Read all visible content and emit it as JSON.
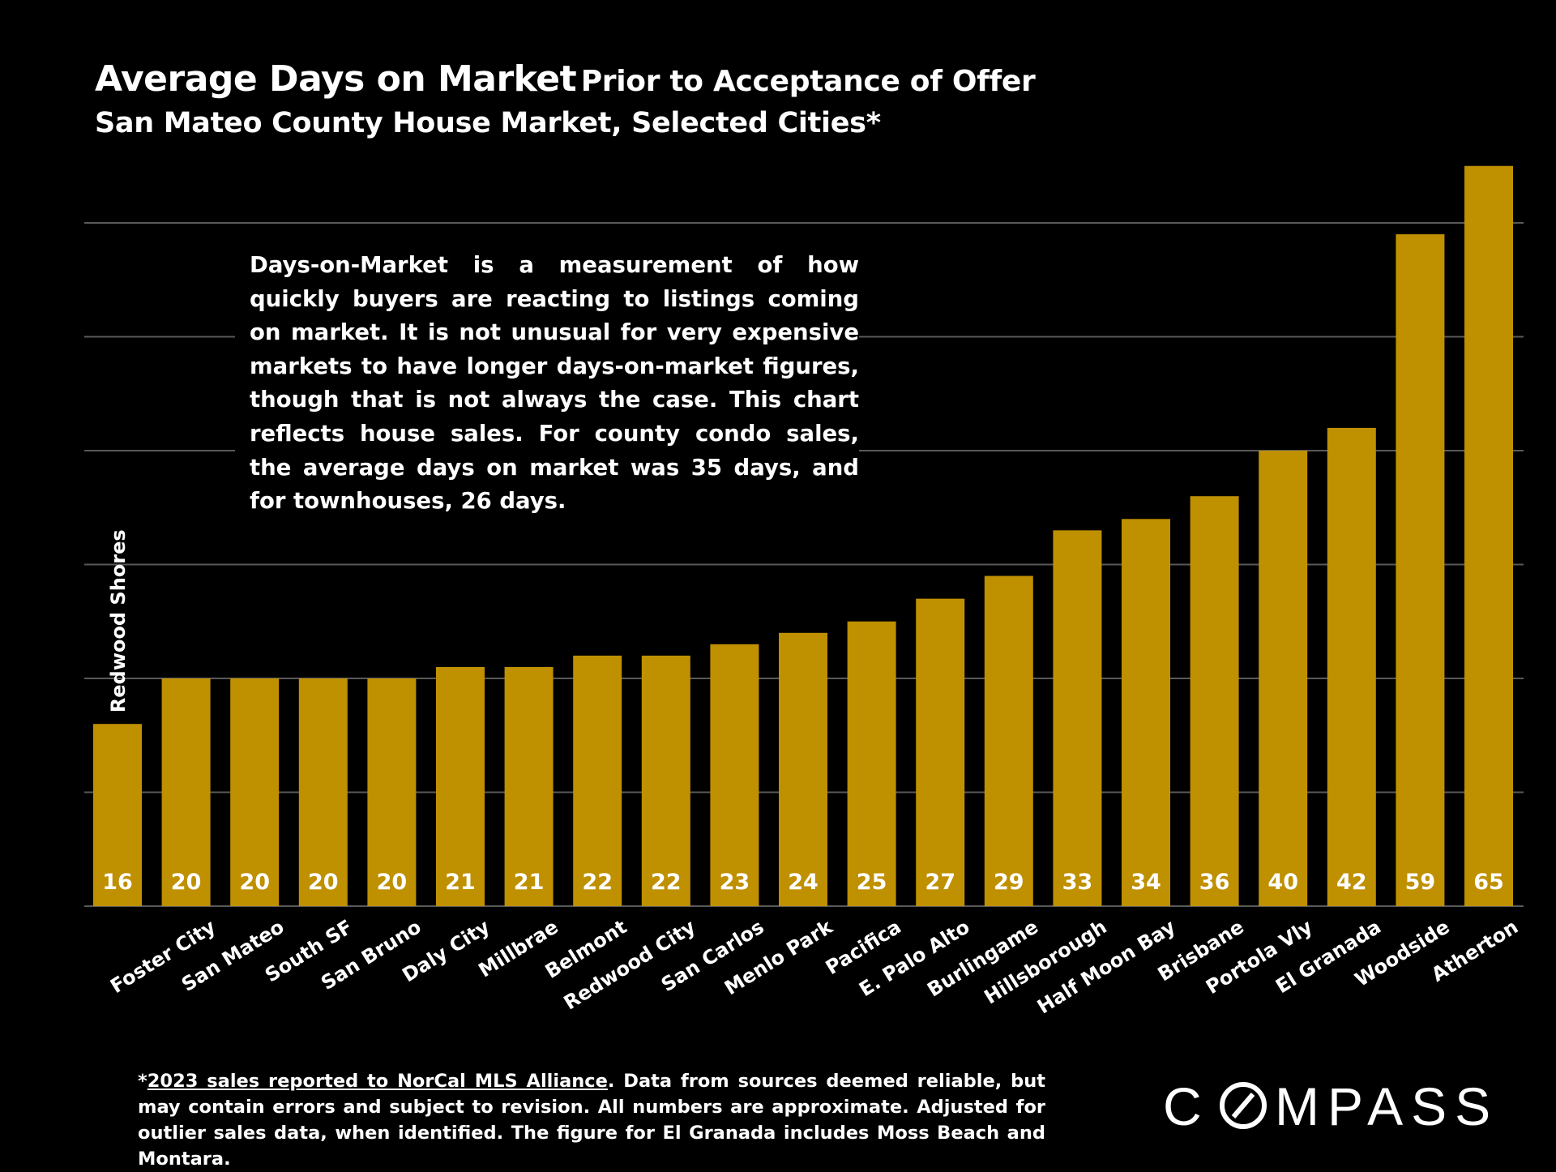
{
  "header": {
    "title_main": "Average Days on Market",
    "title_rest": "Prior to Acceptance of Offer",
    "subtitle": "San Mateo County House Market, Selected Cities*"
  },
  "note": "Days-on-Market is a measurement of how quickly buyers are reacting to listings coming on market. It is not unusual for very expensive markets to have longer days-on-market figures, though that is not always the case. This chart reflects house sales. For county condo sales, the average days on market was 35 days, and for townhouses, 26 days.",
  "footnote": {
    "asterisk": "*",
    "source_link": "2023 sales reported to NorCal MLS Alliance",
    "text": ". Data from sources deemed reliable, but may contain errors and subject to revision. All numbers are approximate. Adjusted for outlier sales data, when identified.  The figure for El Granada includes Moss Beach and Montara."
  },
  "logo": {
    "text": "COMPASS"
  },
  "colors": {
    "bar": "#BF9000",
    "background": "#000000",
    "grid": "#595959",
    "text": "#FFFFFF"
  },
  "chart_data": {
    "type": "bar",
    "title": "Average Days on Market Prior to Acceptance of Offer",
    "subtitle": "San Mateo County House Market, Selected Cities*",
    "categories": [
      "Redwood Shores",
      "Foster City",
      "San Mateo",
      "South SF",
      "San Bruno",
      "Daly City",
      "Millbrae",
      "Belmont",
      "Redwood City",
      "San Carlos",
      "Menlo Park",
      "Pacifica",
      "E. Palo Alto",
      "Burlingame",
      "Hillsborough",
      "Half Moon Bay",
      "Brisbane",
      "Portola Vly",
      "El Granada",
      "Woodside",
      "Atherton"
    ],
    "values": [
      16,
      20,
      20,
      20,
      20,
      21,
      21,
      22,
      22,
      23,
      24,
      25,
      27,
      29,
      33,
      34,
      36,
      40,
      42,
      59,
      65
    ],
    "ylim": [
      0,
      65
    ],
    "gridlines": [
      10,
      20,
      30,
      40,
      50,
      60
    ],
    "grid": true,
    "data_labels": "inside-bottom"
  }
}
